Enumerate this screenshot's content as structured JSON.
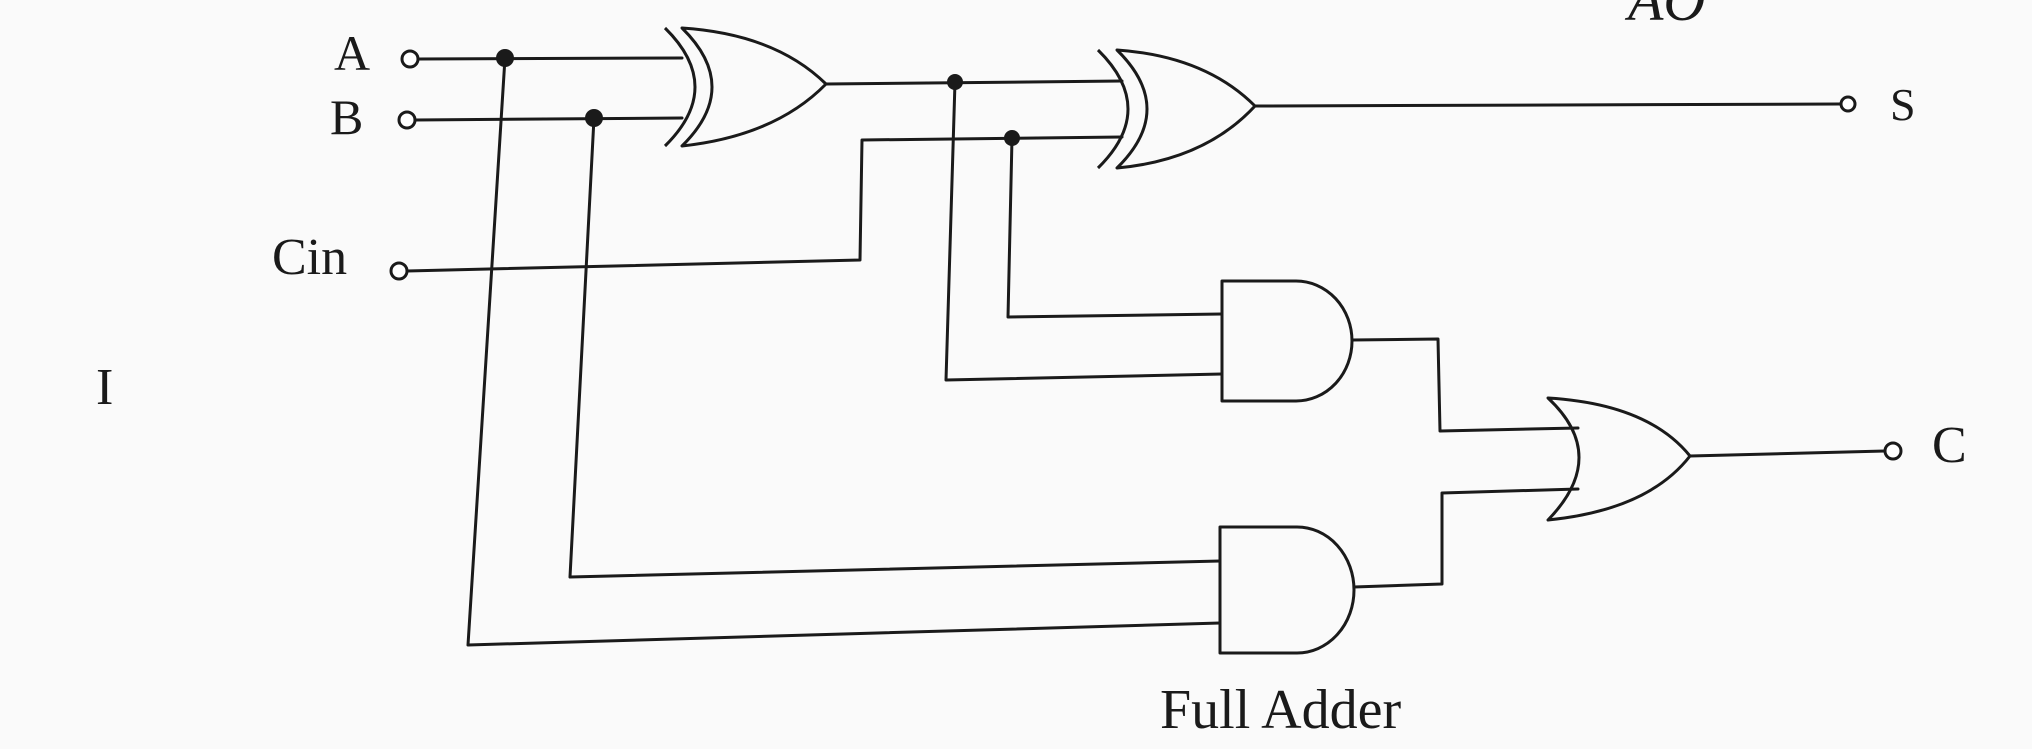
{
  "diagram": {
    "caption": "Full Adder",
    "corner_mark": "AO",
    "margin_mark": "I",
    "inputs": {
      "a": "A",
      "b": "B",
      "cin": "Cin"
    },
    "outputs": {
      "sum": "S",
      "carry": "C"
    },
    "gates": [
      {
        "id": "xor-1",
        "type": "XOR",
        "inputs": [
          "A",
          "B"
        ]
      },
      {
        "id": "xor-2",
        "type": "XOR",
        "inputs": [
          "xor-1",
          "Cin"
        ],
        "output": "S"
      },
      {
        "id": "and-1",
        "type": "AND",
        "inputs": [
          "xor-1",
          "Cin"
        ]
      },
      {
        "id": "and-2",
        "type": "AND",
        "inputs": [
          "A",
          "B"
        ]
      },
      {
        "id": "or-1",
        "type": "OR",
        "inputs": [
          "and-1",
          "and-2"
        ],
        "output": "C"
      }
    ]
  }
}
